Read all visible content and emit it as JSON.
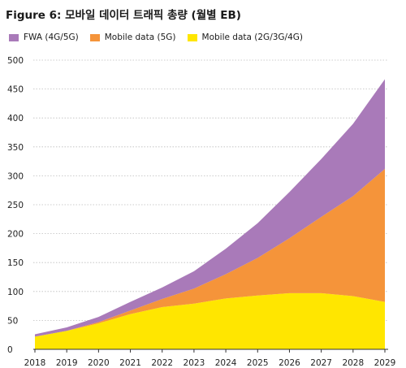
{
  "title": "Figure 6: 모바일 데이터 트래픽 총량 (월별 EB)",
  "chart_data": {
    "type": "area",
    "stacked": true,
    "x": [
      "2018",
      "2019",
      "2020",
      "2021",
      "2022",
      "2023",
      "2024",
      "2025",
      "2026",
      "2027",
      "2028",
      "2029"
    ],
    "ylim": [
      0,
      500
    ],
    "yticks": [
      0,
      50,
      100,
      150,
      200,
      250,
      300,
      350,
      400,
      450,
      500
    ],
    "legend_position": "top-left",
    "grid": "horizontal-dotted",
    "series": [
      {
        "name": "Mobile data (2G/3G/4G)",
        "color": "#ffe600",
        "values": [
          22,
          32,
          45,
          61,
          73,
          79,
          88,
          93,
          97,
          97,
          92,
          82
        ]
      },
      {
        "name": "Mobile data (5G)",
        "color": "#f5943a",
        "values": [
          0,
          0,
          2,
          6,
          14,
          26,
          42,
          65,
          95,
          132,
          173,
          230
        ]
      },
      {
        "name": "FWA (4G/5G)",
        "color": "#a97ab9",
        "values": [
          4,
          6,
          9,
          15,
          20,
          30,
          44,
          60,
          80,
          100,
          125,
          155
        ]
      }
    ],
    "legend_order": [
      "FWA (4G/5G)",
      "Mobile data (5G)",
      "Mobile data (2G/3G/4G)"
    ]
  }
}
